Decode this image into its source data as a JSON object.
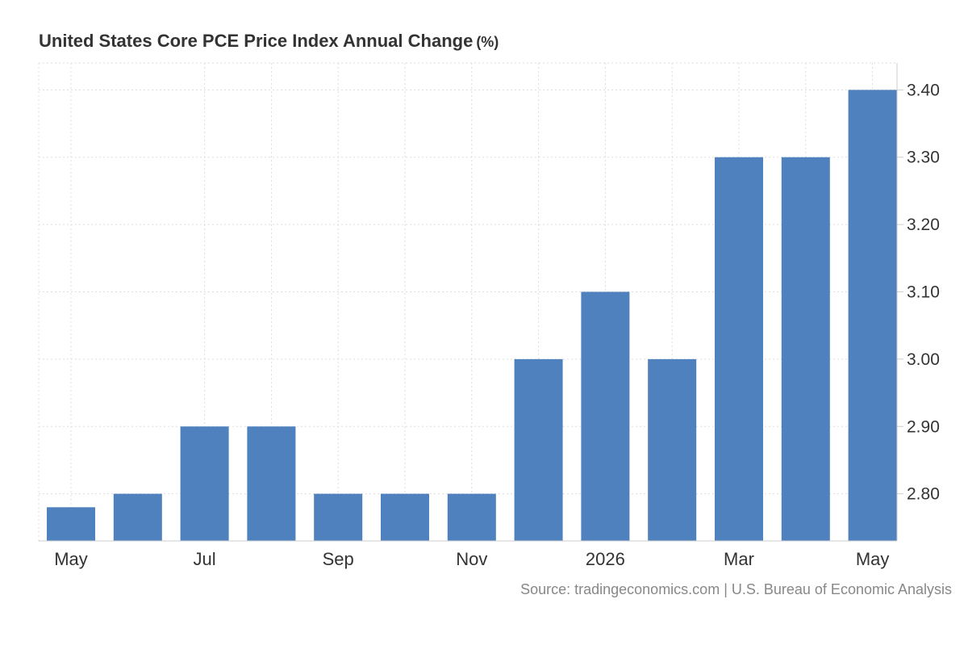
{
  "header": {
    "title": "United States Core PCE Price Index Annual Change",
    "unit": "(%)"
  },
  "footer": {
    "source": "Source: tradingeconomics.com | U.S. Bureau of Economic Analysis"
  },
  "colors": {
    "bar": "#4e81bd",
    "grid": "#dddddd",
    "axis_text": "#333333",
    "source_text": "#888888"
  },
  "chart_data": {
    "type": "bar",
    "title": "United States Core PCE Price Index Annual Change (%)",
    "xlabel": "",
    "ylabel": "",
    "categories": [
      "May 2025",
      "Jun 2025",
      "Jul 2025",
      "Aug 2025",
      "Sep 2025",
      "Oct 2025",
      "Nov 2025",
      "Dec 2025",
      "Jan 2026",
      "Feb 2026",
      "Mar 2026",
      "Apr 2026",
      "May 2026"
    ],
    "values": [
      2.78,
      2.8,
      2.9,
      2.9,
      2.8,
      2.8,
      2.8,
      3.0,
      3.1,
      3.0,
      3.3,
      3.3,
      3.4
    ],
    "x_tick_labels": [
      {
        "index": 0,
        "label": "May"
      },
      {
        "index": 2,
        "label": "Jul"
      },
      {
        "index": 4,
        "label": "Sep"
      },
      {
        "index": 6,
        "label": "Nov"
      },
      {
        "index": 8,
        "label": "2026"
      },
      {
        "index": 10,
        "label": "Mar"
      },
      {
        "index": 12,
        "label": "May"
      }
    ],
    "y_ticks": [
      "2.80",
      "2.90",
      "3.00",
      "3.10",
      "3.20",
      "3.30",
      "3.40"
    ],
    "ylim": [
      2.73,
      3.44
    ],
    "y_axis_side": "right",
    "grid": true,
    "legend": "none"
  }
}
